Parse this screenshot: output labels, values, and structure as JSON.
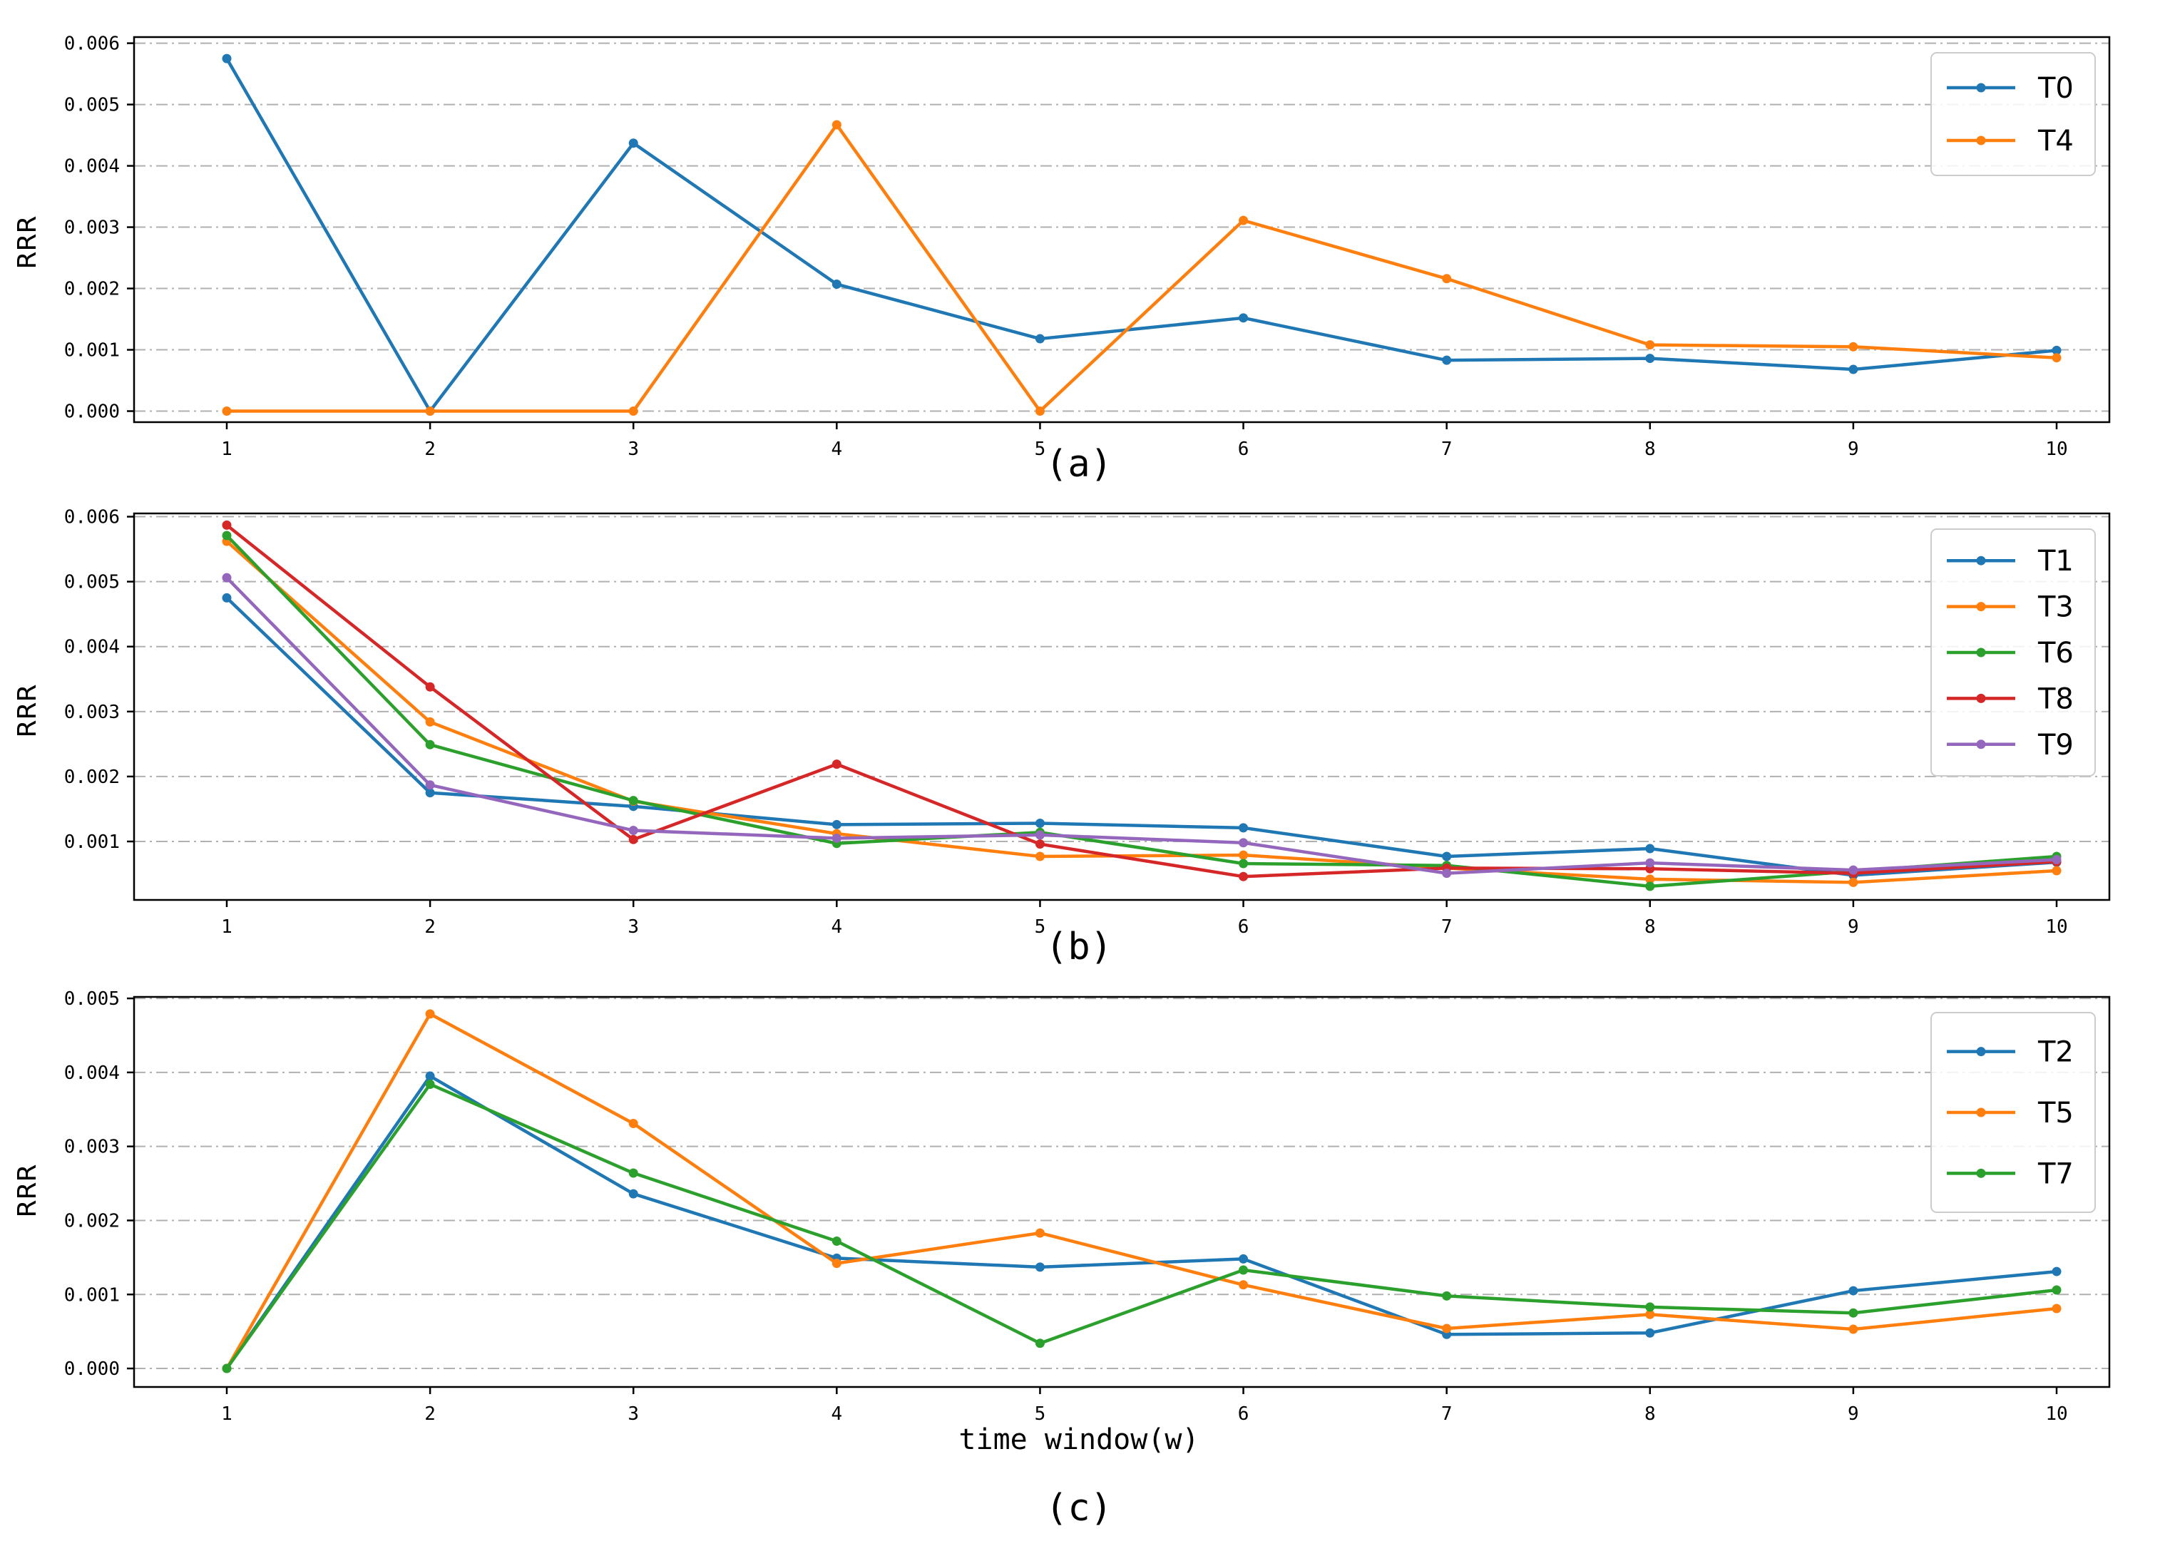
{
  "chart_data": [
    {
      "type": "line",
      "panel_label": "(a)",
      "title": "",
      "xlabel": "",
      "ylabel": "RRR",
      "x": [
        1,
        2,
        3,
        4,
        5,
        6,
        7,
        8,
        9,
        10
      ],
      "xticks": [
        "1",
        "2",
        "3",
        "4",
        "5",
        "6",
        "7",
        "8",
        "9",
        "10"
      ],
      "ylim": [
        -0.00018,
        0.0061
      ],
      "yticks": [
        0,
        0.001,
        0.002,
        0.003,
        0.004,
        0.005,
        0.006
      ],
      "ytick_labels": [
        "0.000",
        "0.001",
        "0.002",
        "0.003",
        "0.004",
        "0.005",
        "0.006"
      ],
      "grid": "horizontal dashed",
      "legend_position": "top-right",
      "series": [
        {
          "name": "T0",
          "color": "#1f77b4",
          "values": [
            0.00575,
            0.0,
            0.00437,
            0.00207,
            0.00118,
            0.00152,
            0.00083,
            0.00086,
            0.00068,
            0.00099
          ]
        },
        {
          "name": "T4",
          "color": "#ff7f0e",
          "values": [
            0.0,
            0.0,
            0.0,
            0.00467,
            0.0,
            0.00311,
            0.00216,
            0.00108,
            0.00105,
            0.00087
          ]
        }
      ]
    },
    {
      "type": "line",
      "panel_label": "(b)",
      "title": "",
      "xlabel": "",
      "ylabel": "RRR",
      "x": [
        1,
        2,
        3,
        4,
        5,
        6,
        7,
        8,
        9,
        10
      ],
      "xticks": [
        "1",
        "2",
        "3",
        "4",
        "5",
        "6",
        "7",
        "8",
        "9",
        "10"
      ],
      "ylim": [
        0.0001,
        0.00605
      ],
      "yticks": [
        0.001,
        0.002,
        0.003,
        0.004,
        0.005,
        0.006
      ],
      "ytick_labels": [
        "0.001",
        "0.002",
        "0.003",
        "0.004",
        "0.005",
        "0.006"
      ],
      "grid": "horizontal dashed",
      "legend_position": "top-right",
      "series": [
        {
          "name": "T1",
          "color": "#1f77b4",
          "values": [
            0.00475,
            0.00175,
            0.00154,
            0.00126,
            0.00128,
            0.00121,
            0.00077,
            0.00089,
            0.00048,
            0.00068
          ]
        },
        {
          "name": "T3",
          "color": "#ff7f0e",
          "values": [
            0.00562,
            0.00284,
            0.00162,
            0.00112,
            0.00077,
            0.00079,
            0.00059,
            0.00042,
            0.00037,
            0.00055
          ]
        },
        {
          "name": "T6",
          "color": "#2ca02c",
          "values": [
            0.00571,
            0.00249,
            0.00163,
            0.00097,
            0.00114,
            0.00066,
            0.00063,
            0.00031,
            0.00054,
            0.00077
          ]
        },
        {
          "name": "T8",
          "color": "#d62728",
          "values": [
            0.00587,
            0.00338,
            0.00103,
            0.00219,
            0.00096,
            0.00046,
            0.00059,
            0.00058,
            0.00051,
            0.00069
          ]
        },
        {
          "name": "T9",
          "color": "#9467bd",
          "values": [
            0.00506,
            0.00187,
            0.00117,
            0.00105,
            0.0011,
            0.00098,
            0.00051,
            0.00067,
            0.00056,
            0.00072
          ]
        }
      ]
    },
    {
      "type": "line",
      "panel_label": "(c)",
      "title": "",
      "xlabel": "time window(w)",
      "ylabel": "RRR",
      "x": [
        1,
        2,
        3,
        4,
        5,
        6,
        7,
        8,
        9,
        10
      ],
      "xticks": [
        "1",
        "2",
        "3",
        "4",
        "5",
        "6",
        "7",
        "8",
        "9",
        "10"
      ],
      "ylim": [
        -0.00025,
        0.00502
      ],
      "yticks": [
        0,
        0.001,
        0.002,
        0.003,
        0.004,
        0.005
      ],
      "ytick_labels": [
        "0.000",
        "0.001",
        "0.002",
        "0.003",
        "0.004",
        "0.005"
      ],
      "grid": "horizontal dashed",
      "legend_position": "top-right",
      "series": [
        {
          "name": "T2",
          "color": "#1f77b4",
          "values": [
            0.0,
            0.00395,
            0.00236,
            0.00149,
            0.00137,
            0.00148,
            0.00046,
            0.00048,
            0.00105,
            0.00131
          ]
        },
        {
          "name": "T5",
          "color": "#ff7f0e",
          "values": [
            0.0,
            0.00479,
            0.00331,
            0.00142,
            0.00183,
            0.00113,
            0.00054,
            0.00073,
            0.00053,
            0.00081
          ]
        },
        {
          "name": "T7",
          "color": "#2ca02c",
          "values": [
            0.0,
            0.00384,
            0.00264,
            0.00172,
            0.00034,
            0.00133,
            0.00098,
            0.00083,
            0.00075,
            0.00106
          ]
        }
      ]
    }
  ]
}
